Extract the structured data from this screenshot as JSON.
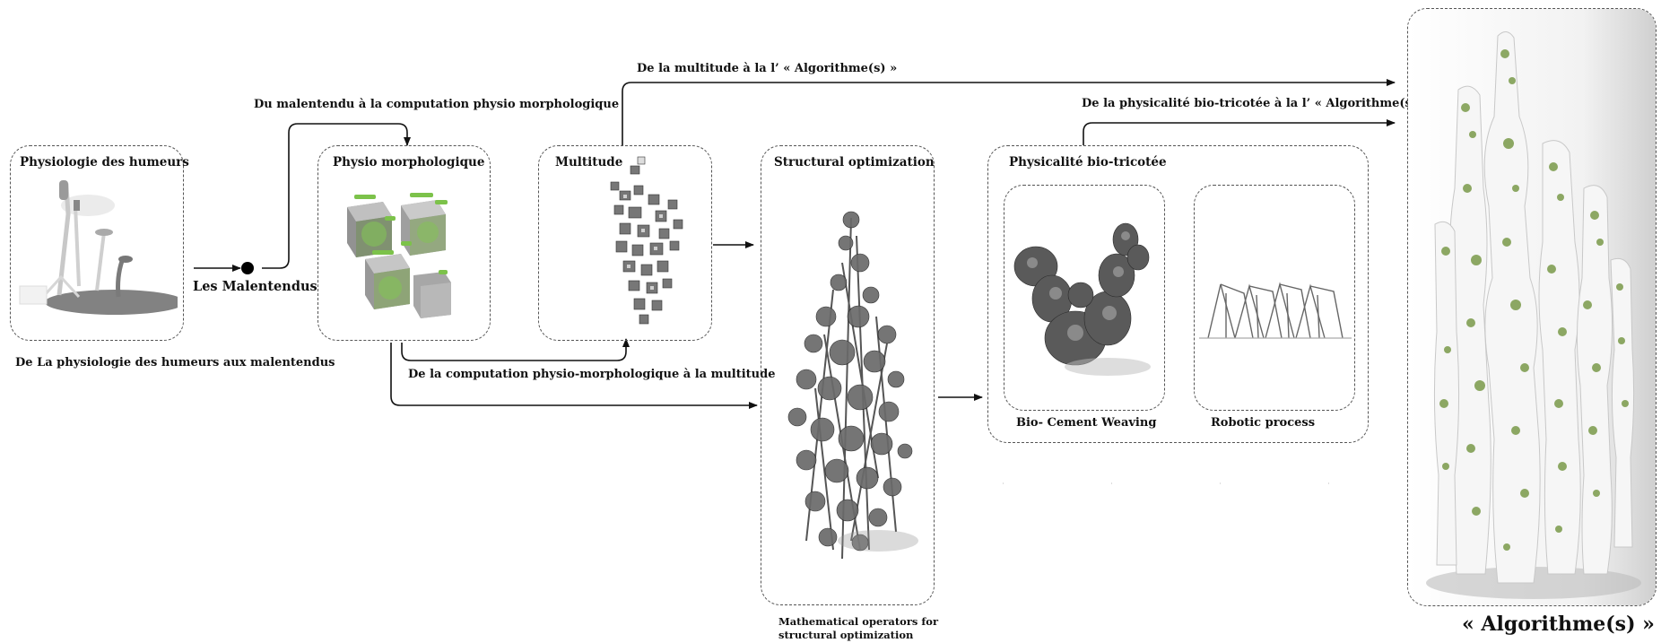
{
  "boxes": {
    "physiologie": {
      "title": "Physiologie des humeurs"
    },
    "physio_morpho": {
      "title": "Physio morphologique"
    },
    "multitude": {
      "title": "Multitude"
    },
    "structural": {
      "title": "Structural optimization"
    },
    "physicalite": {
      "title": "Physicalité bio-tricotée"
    },
    "bio_cement": {
      "label": "Bio- Cement Weaving"
    },
    "robotic": {
      "label": "Robotic process"
    }
  },
  "labels": {
    "les_malentendus": "Les Malentendus",
    "physiologie_to_malentendus": "De La physiologie des humeurs aux malentendus",
    "malentendu_to_computation": "Du malentendu à la computation physio morphologique",
    "computation_to_multitude": "De la computation physio-morphologique à la multitude",
    "multitude_to_algorithme": "De la multitude à la l’ « Algorithme(s) »",
    "physicalite_to_algorithme": "De la physicalité bio-tricotée à la l’ « Algorithme(s) »",
    "math_operators_line1": "Mathematical operators for",
    "math_operators_line2": "structural optimization",
    "algorithme": "« Algorithme(s) »"
  },
  "colors": {
    "line": "#111111",
    "dash": "#555555",
    "accent_green": "#7cc24a",
    "sculpture_gray": "#6a6a6a",
    "white_structure": "#f4f4f4"
  }
}
